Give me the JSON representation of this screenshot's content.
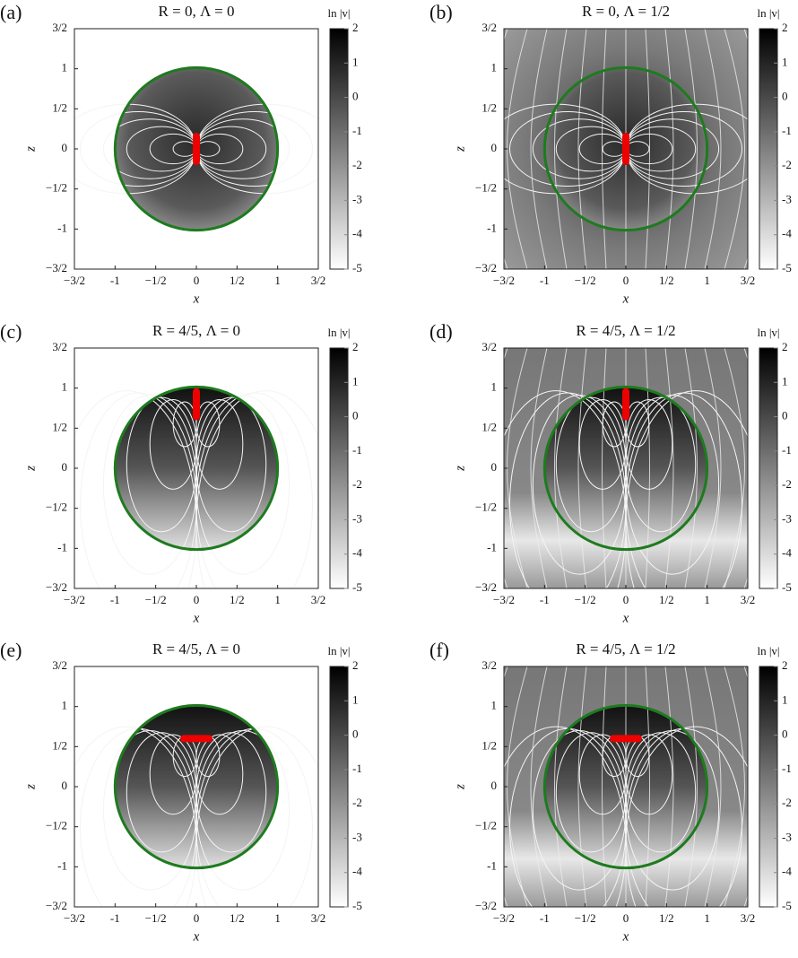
{
  "chart_data": [
    {
      "type": "field",
      "panel": "(a)",
      "title": "R = 0, Λ = 0",
      "xlabel": "x",
      "ylabel": "z",
      "colorbar_label": "ln |v|",
      "xlim": [
        -1.5,
        1.5
      ],
      "ylim": [
        -1.5,
        1.5
      ],
      "xticks": [
        {
          "value": -1.5,
          "label": "−3/2"
        },
        -1,
        {
          "value": -0.5,
          "label": "−1/2"
        },
        0,
        {
          "value": 0.5,
          "label": "1/2"
        },
        1,
        {
          "value": 1.5,
          "label": "3/2"
        }
      ],
      "yticks": [
        {
          "value": -1.5,
          "label": "−3/2"
        },
        -1,
        {
          "value": -0.5,
          "label": "−1/2"
        },
        0,
        {
          "value": 0.5,
          "label": "1/2"
        },
        1,
        {
          "value": 1.5,
          "label": "3/2"
        }
      ],
      "clim": [
        -5,
        2
      ],
      "cticks": [
        -5,
        -4,
        -3,
        -2,
        -1,
        0,
        1,
        2
      ],
      "circle_color": "#1e7b1e"
    },
    {
      "type": "field",
      "panel": "(b)",
      "title": "R = 0, Λ = 1/2",
      "xlabel": "x",
      "ylabel": "z",
      "colorbar_label": "ln |v|",
      "xlim": [
        -1.5,
        1.5
      ],
      "ylim": [
        -1.5,
        1.5
      ],
      "xticks": [
        {
          "value": -1.5,
          "label": "−3/2"
        },
        -1,
        {
          "value": -0.5,
          "label": "−1/2"
        },
        0,
        {
          "value": 0.5,
          "label": "1/2"
        },
        1,
        {
          "value": 1.5,
          "label": "3/2"
        }
      ],
      "yticks": [
        {
          "value": -1.5,
          "label": "−3/2"
        },
        -1,
        {
          "value": -0.5,
          "label": "−1/2"
        },
        0,
        {
          "value": 0.5,
          "label": "1/2"
        },
        1,
        {
          "value": 1.5,
          "label": "3/2"
        }
      ],
      "clim": [
        -5,
        2
      ],
      "cticks": [
        -5,
        -4,
        -3,
        -2,
        -1,
        0,
        1,
        2
      ],
      "circle_color": "#1e7b1e"
    },
    {
      "type": "field",
      "panel": "(c)",
      "title": "R = 4/5, Λ = 0",
      "xlabel": "x",
      "ylabel": "z",
      "colorbar_label": "ln |v|",
      "xlim": [
        -1.5,
        1.5
      ],
      "ylim": [
        -1.5,
        1.5
      ],
      "xticks": [
        {
          "value": -1.5,
          "label": "−3/2"
        },
        -1,
        {
          "value": -0.5,
          "label": "−1/2"
        },
        0,
        {
          "value": 0.5,
          "label": "1/2"
        },
        1,
        {
          "value": 1.5,
          "label": "3/2"
        }
      ],
      "yticks": [
        {
          "value": -1.5,
          "label": "−3/2"
        },
        -1,
        {
          "value": -0.5,
          "label": "−1/2"
        },
        0,
        {
          "value": 0.5,
          "label": "1/2"
        },
        1,
        {
          "value": 1.5,
          "label": "3/2"
        }
      ],
      "clim": [
        -5,
        2
      ],
      "cticks": [
        -5,
        -4,
        -3,
        -2,
        -1,
        0,
        1,
        2
      ],
      "circle_color": "#1e7b1e"
    },
    {
      "type": "field",
      "panel": "(d)",
      "title": "R = 4/5, Λ = 1/2",
      "xlabel": "x",
      "ylabel": "z",
      "colorbar_label": "ln |v|",
      "xlim": [
        -1.5,
        1.5
      ],
      "ylim": [
        -1.5,
        1.5
      ],
      "xticks": [
        {
          "value": -1.5,
          "label": "−3/2"
        },
        -1,
        {
          "value": -0.5,
          "label": "−1/2"
        },
        0,
        {
          "value": 0.5,
          "label": "1/2"
        },
        1,
        {
          "value": 1.5,
          "label": "3/2"
        }
      ],
      "yticks": [
        {
          "value": -1.5,
          "label": "−3/2"
        },
        -1,
        {
          "value": -0.5,
          "label": "−1/2"
        },
        0,
        {
          "value": 0.5,
          "label": "1/2"
        },
        1,
        {
          "value": 1.5,
          "label": "3/2"
        }
      ],
      "clim": [
        -5,
        2
      ],
      "cticks": [
        -5,
        -4,
        -3,
        -2,
        -1,
        0,
        1,
        2
      ],
      "circle_color": "#1e7b1e"
    },
    {
      "type": "field",
      "panel": "(e)",
      "title": "R = 4/5, Λ = 0",
      "xlabel": "x",
      "ylabel": "z",
      "colorbar_label": "ln |v|",
      "xlim": [
        -1.5,
        1.5
      ],
      "ylim": [
        -1.5,
        1.5
      ],
      "xticks": [
        {
          "value": -1.5,
          "label": "−3/2"
        },
        -1,
        {
          "value": -0.5,
          "label": "−1/2"
        },
        0,
        {
          "value": 0.5,
          "label": "1/2"
        },
        1,
        {
          "value": 1.5,
          "label": "3/2"
        }
      ],
      "yticks": [
        {
          "value": -1.5,
          "label": "−3/2"
        },
        -1,
        {
          "value": -0.5,
          "label": "−1/2"
        },
        0,
        {
          "value": 0.5,
          "label": "1/2"
        },
        1,
        {
          "value": 1.5,
          "label": "3/2"
        }
      ],
      "clim": [
        -5,
        2
      ],
      "cticks": [
        -5,
        -4,
        -3,
        -2,
        -1,
        0,
        1,
        2
      ],
      "circle_color": "#1e7b1e"
    },
    {
      "type": "field",
      "panel": "(f)",
      "title": "R = 4/5, Λ = 1/2",
      "xlabel": "x",
      "ylabel": "z",
      "colorbar_label": "ln |v|",
      "xlim": [
        -1.5,
        1.5
      ],
      "ylim": [
        -1.5,
        1.5
      ],
      "xticks": [
        {
          "value": -1.5,
          "label": "−3/2"
        },
        -1,
        {
          "value": -0.5,
          "label": "−1/2"
        },
        0,
        {
          "value": 0.5,
          "label": "1/2"
        },
        1,
        {
          "value": 1.5,
          "label": "3/2"
        }
      ],
      "yticks": [
        {
          "value": -1.5,
          "label": "−3/2"
        },
        -1,
        {
          "value": -0.5,
          "label": "−1/2"
        },
        0,
        {
          "value": 0.5,
          "label": "1/2"
        },
        1,
        {
          "value": 1.5,
          "label": "3/2"
        }
      ],
      "clim": [
        -5,
        2
      ],
      "cticks": [
        -5,
        -4,
        -3,
        -2,
        -1,
        0,
        1,
        2
      ],
      "circle_color": "#1e7b1e"
    }
  ]
}
